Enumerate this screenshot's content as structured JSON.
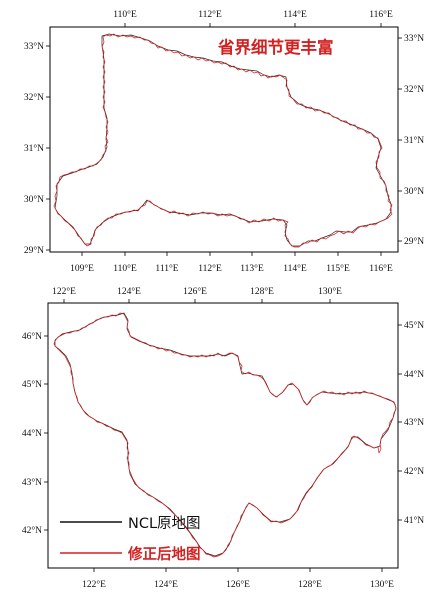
{
  "annotation": "省界细节更丰富",
  "legend": {
    "ncl_label": "NCL原地图",
    "fixed_label": "修正后地图",
    "ncl_color": "#111111",
    "fixed_color": "#d42020"
  },
  "colors": {
    "annotation": "#d42020",
    "frame": "#000000"
  },
  "panels": [
    {
      "id": "hubei",
      "top_ticks": [
        "110°E",
        "112°E",
        "114°E",
        "116°E"
      ],
      "bottom_ticks": [
        "109°E",
        "110°E",
        "111°E",
        "112°E",
        "113°E",
        "114°E",
        "115°E",
        "116°E"
      ],
      "left_ticks": [
        "33°N",
        "32°N",
        "31°N",
        "30°N",
        "29°N"
      ],
      "right_ticks": [
        "33°N",
        "32°N",
        "31°N",
        "30°N",
        "29°N"
      ]
    },
    {
      "id": "jilin",
      "top_ticks": [
        "122°E",
        "124°E",
        "126°E",
        "128°E",
        "130°E"
      ],
      "bottom_ticks": [
        "122°E",
        "124°E",
        "126°E",
        "128°E",
        "130°E"
      ],
      "left_ticks": [
        "46°N",
        "45°N",
        "44°N",
        "43°N",
        "42°N"
      ],
      "right_ticks": [
        "45°N",
        "44°N",
        "43°N",
        "42°N",
        "41°N"
      ]
    }
  ]
}
